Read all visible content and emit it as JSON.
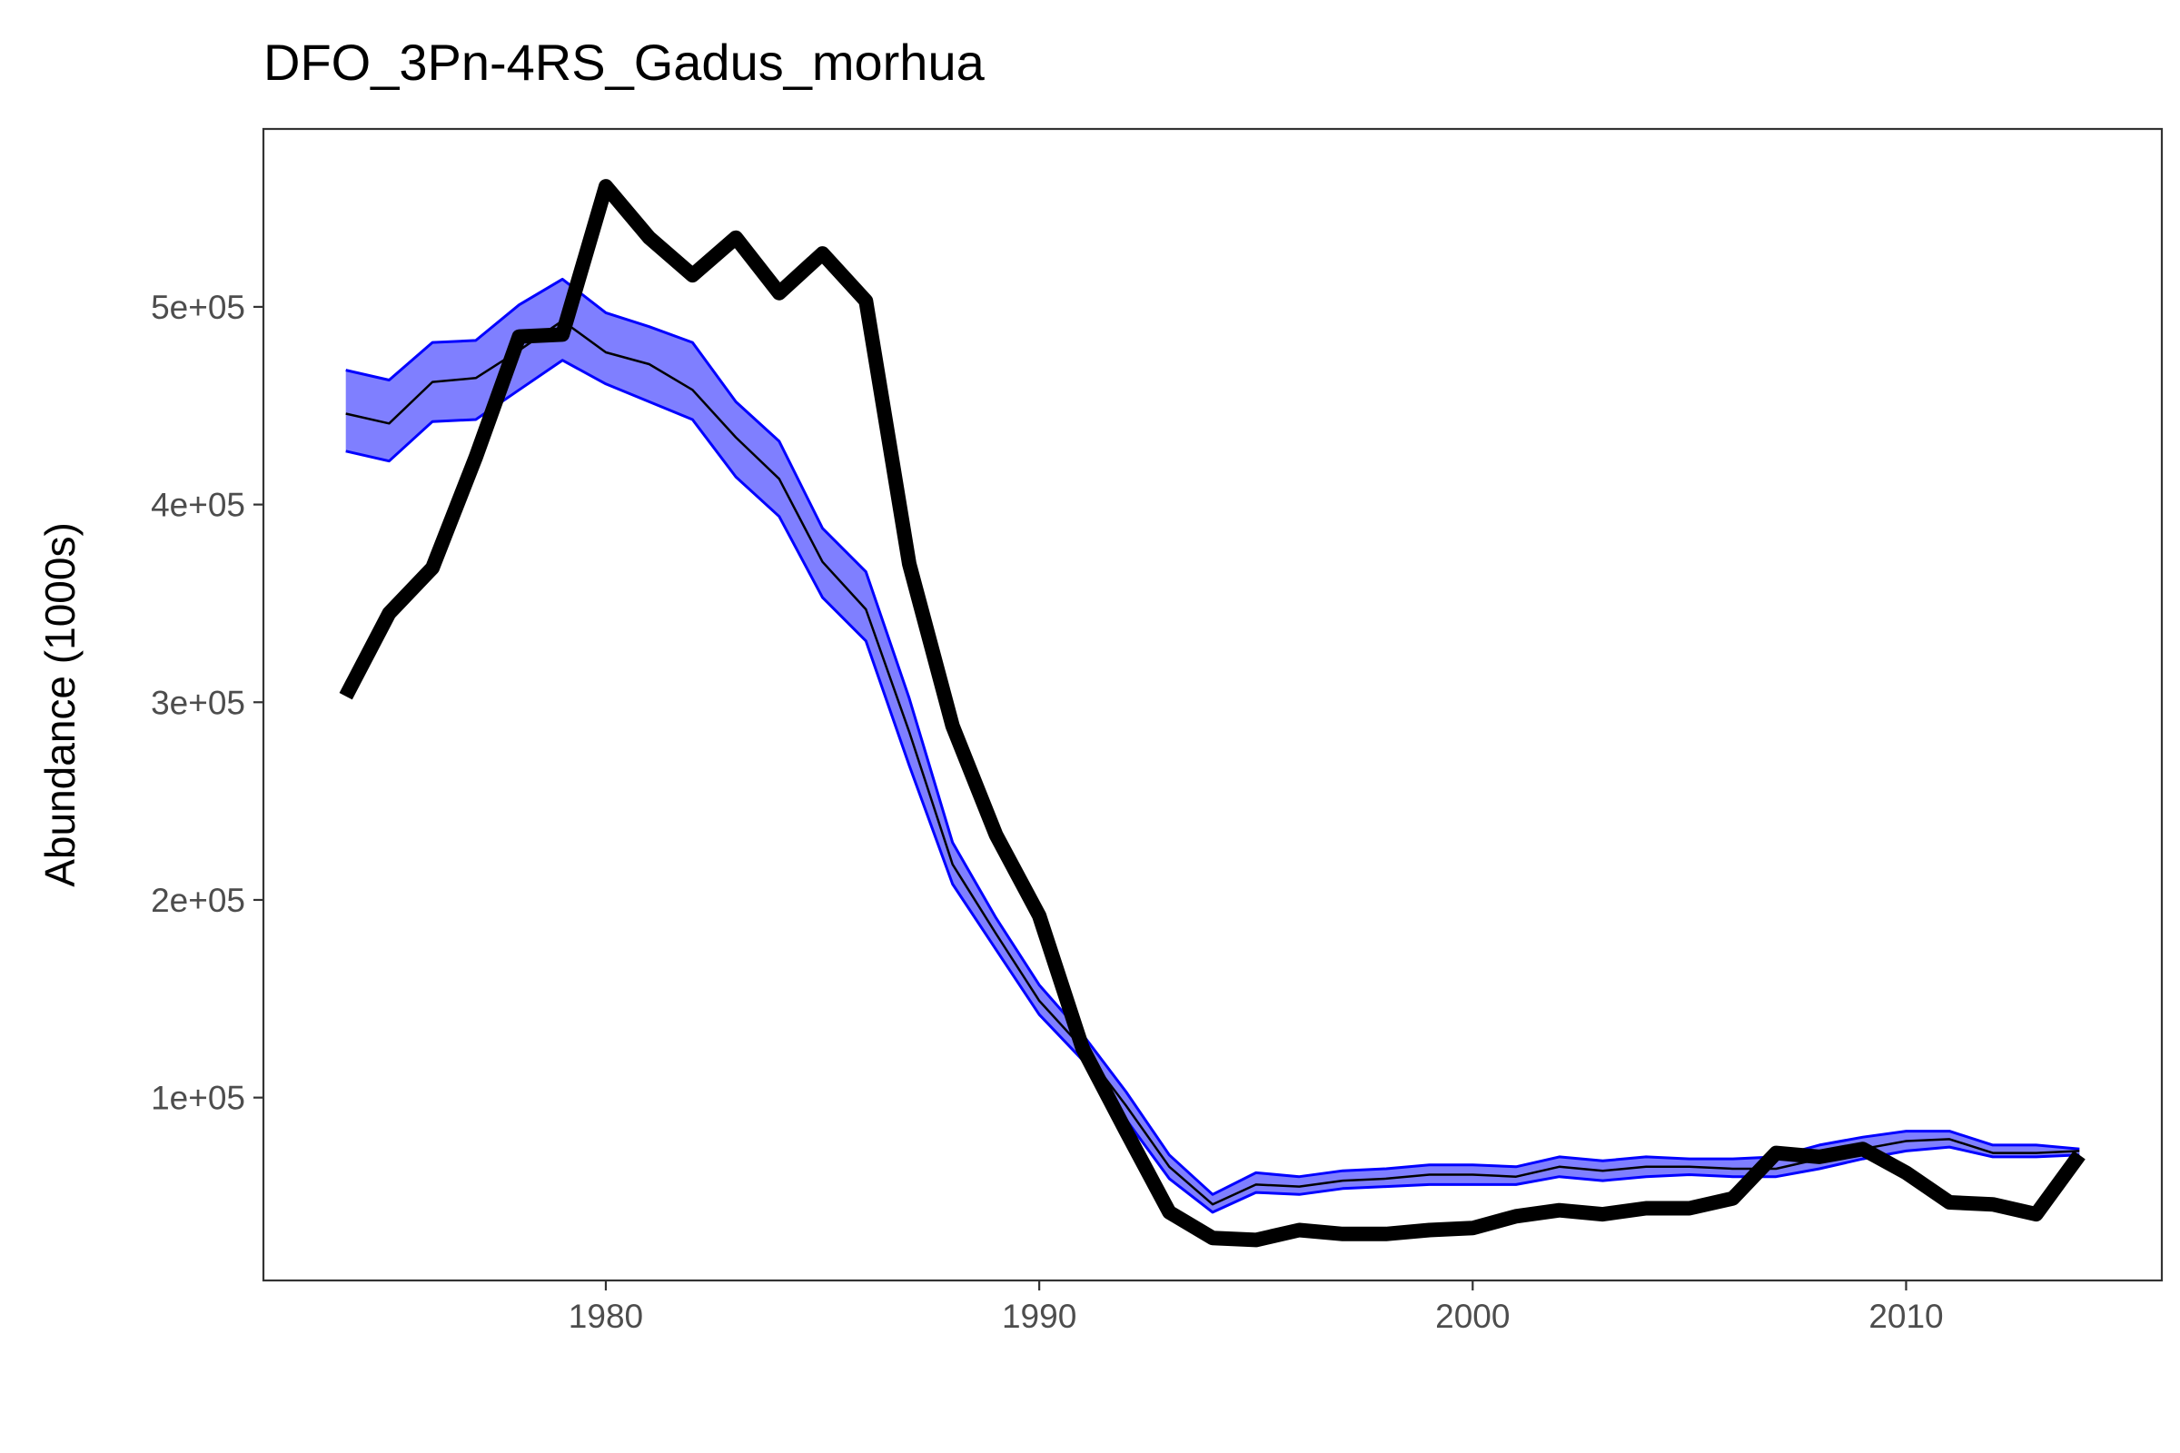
{
  "chart_data": {
    "type": "line",
    "title": "DFO_3Pn-4RS_Gadus_morhua",
    "xlabel": "",
    "ylabel": "Abundance (1000s)",
    "xlim": [
      1972.1,
      2015.9
    ],
    "ylim": [
      7500,
      590000
    ],
    "xticks": [
      1980,
      1990,
      2000,
      2010
    ],
    "xtick_labels": [
      "1980",
      "1990",
      "2000",
      "2010"
    ],
    "yticks": [
      100000,
      200000,
      300000,
      400000,
      500000
    ],
    "ytick_labels": [
      "1e+05",
      "2e+05",
      "3e+05",
      "4e+05",
      "5e+05"
    ],
    "grid": false,
    "colors": {
      "band_fill": "#0000ff",
      "band_line": "#0000ff",
      "estimate_line": "#000000",
      "observed_line": "#000000",
      "panel_border": "#333333"
    },
    "x": [
      1974,
      1975,
      1976,
      1977,
      1978,
      1979,
      1980,
      1981,
      1982,
      1983,
      1984,
      1985,
      1986,
      1987,
      1988,
      1989,
      1990,
      1991,
      1992,
      1993,
      1994,
      1995,
      1996,
      1997,
      1998,
      1999,
      2000,
      2001,
      2002,
      2003,
      2004,
      2005,
      2006,
      2007,
      2008,
      2009,
      2010,
      2011,
      2012,
      2013,
      2014
    ],
    "series": [
      {
        "role": "model_estimate",
        "values": [
          446000,
          441000,
          462000,
          464000,
          478000,
          493000,
          477000,
          471000,
          458000,
          434000,
          413000,
          371000,
          347000,
          285000,
          218000,
          183000,
          149000,
          125000,
          96000,
          65000,
          46000,
          56000,
          55000,
          58000,
          59000,
          61000,
          61000,
          60000,
          65000,
          63000,
          65000,
          65000,
          64000,
          64000,
          69000,
          74000,
          78000,
          79000,
          72000,
          72000,
          73000
        ],
        "lower": [
          427000,
          422000,
          442000,
          443000,
          458000,
          473000,
          461000,
          452000,
          443000,
          414000,
          394000,
          353000,
          331000,
          268000,
          208000,
          175000,
          142000,
          119000,
          89000,
          59000,
          42000,
          52000,
          51000,
          54000,
          55000,
          56000,
          56000,
          56000,
          60000,
          58000,
          60000,
          61000,
          60000,
          60000,
          64000,
          69000,
          73000,
          75000,
          70000,
          70000,
          71000
        ],
        "upper": [
          468000,
          463000,
          482000,
          483000,
          501000,
          514000,
          497000,
          490000,
          482000,
          452000,
          432000,
          388000,
          366000,
          302000,
          229000,
          191000,
          157000,
          132000,
          103000,
          71000,
          51000,
          62000,
          60000,
          63000,
          64000,
          66000,
          66000,
          65000,
          70000,
          68000,
          70000,
          69000,
          69000,
          70000,
          76000,
          80000,
          83000,
          83000,
          76000,
          76000,
          74000
        ]
      },
      {
        "role": "observed",
        "values": [
          303000,
          345000,
          368000,
          424000,
          485000,
          486000,
          561000,
          535000,
          516000,
          535000,
          507000,
          527000,
          503000,
          370000,
          288000,
          233000,
          192000,
          125000,
          83000,
          42000,
          29000,
          28000,
          33000,
          31000,
          31000,
          33000,
          34000,
          40000,
          43000,
          41000,
          44000,
          44000,
          49000,
          72000,
          70000,
          74000,
          62000,
          47000,
          46000,
          41000,
          71000
        ]
      }
    ]
  }
}
